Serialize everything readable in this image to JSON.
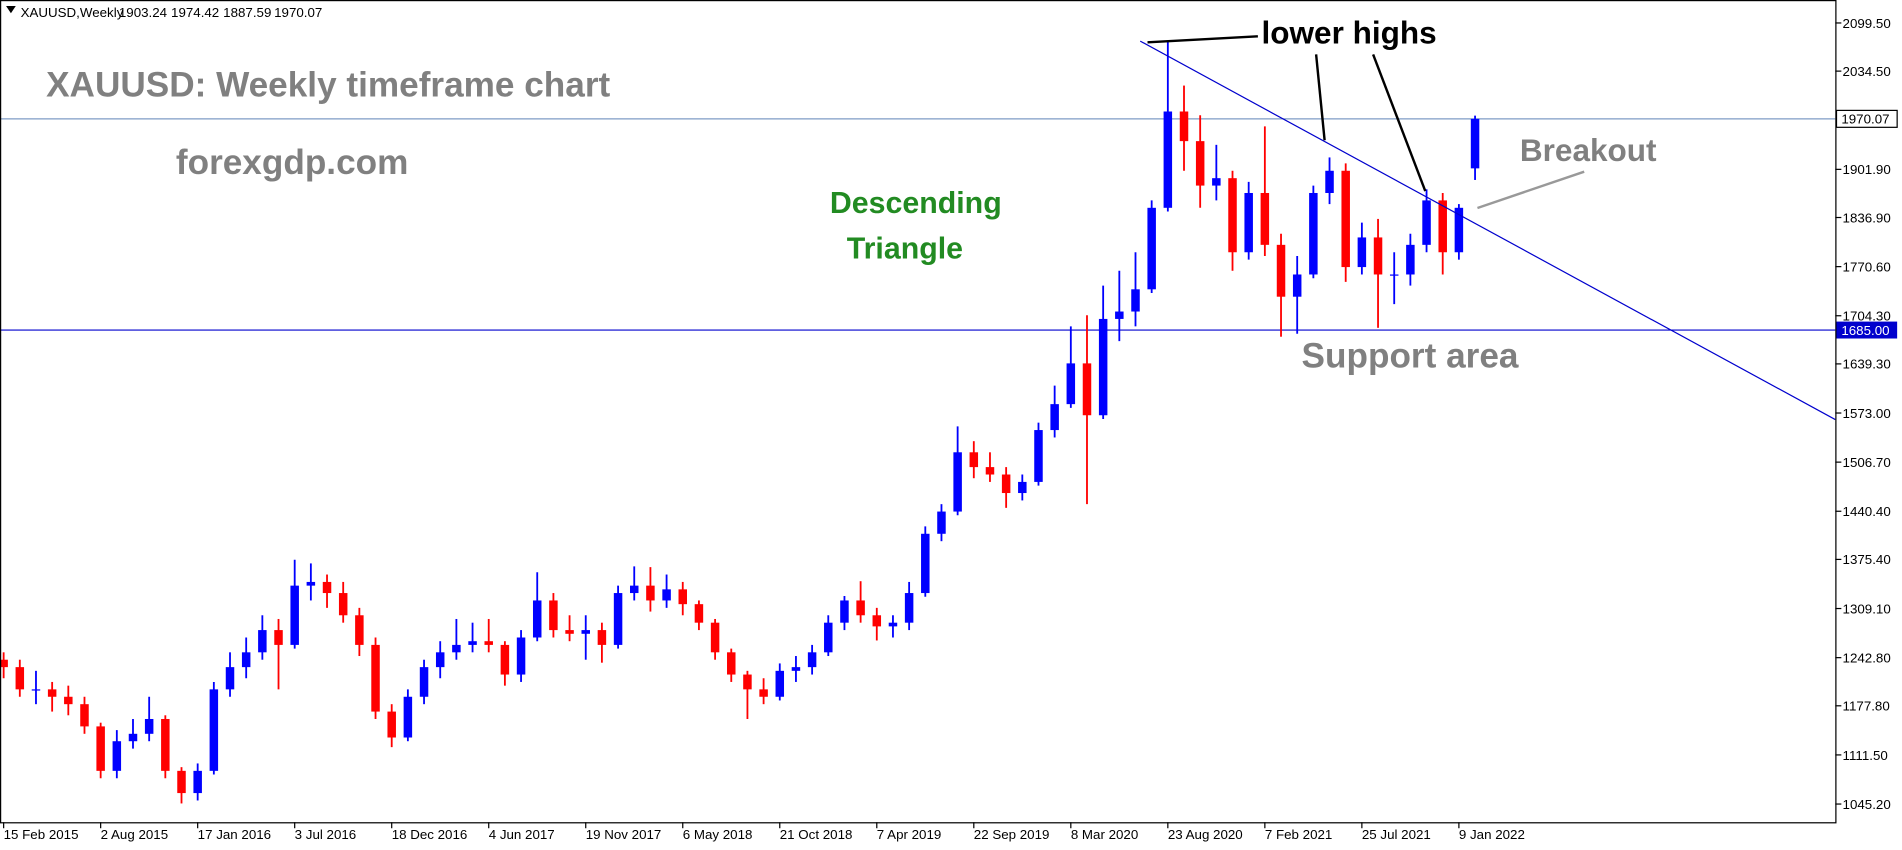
{
  "chart_data": {
    "type": "candlestick",
    "symbol": "XAUUSD,Weekly",
    "title": "XAUUSD: Weekly timeframe chart",
    "site": "forexgdp.com",
    "pattern": [
      "Descending",
      "Triangle"
    ],
    "annotation_lower_highs": "lower highs",
    "annotation_breakout": "Breakout",
    "annotation_support": "Support area",
    "up_color": "#0000ff",
    "down_color": "#ff0000",
    "categories": [
      "15 Feb 2015",
      null,
      null,
      null,
      null,
      null,
      "2 Aug 2015",
      null,
      null,
      null,
      null,
      null,
      "17 Jan 2016",
      null,
      null,
      null,
      null,
      null,
      "3 Jul 2016",
      null,
      null,
      null,
      null,
      null,
      "18 Dec 2016",
      null,
      null,
      null,
      null,
      null,
      "4 Jun 2017",
      null,
      null,
      null,
      null,
      null,
      "19 Nov 2017",
      null,
      null,
      null,
      null,
      null,
      "6 May 2018",
      null,
      null,
      null,
      null,
      null,
      "21 Oct 2018",
      null,
      null,
      null,
      null,
      null,
      "7 Apr 2019",
      null,
      null,
      null,
      null,
      null,
      "22 Sep 2019",
      null,
      null,
      null,
      null,
      null,
      "8 Mar 2020",
      null,
      null,
      null,
      null,
      null,
      "23 Aug 2020",
      null,
      null,
      null,
      null,
      null,
      "7 Feb 2021",
      null,
      null,
      null,
      null,
      null,
      "25 Jul 2021",
      null,
      null,
      null,
      null,
      null,
      "9 Jan 2022",
      null
    ],
    "ohlc": [
      [
        1240,
        1250,
        1215,
        1230
      ],
      [
        1230,
        1240,
        1190,
        1200
      ],
      [
        1200,
        1225,
        1180,
        1200
      ],
      [
        1200,
        1210,
        1170,
        1190
      ],
      [
        1190,
        1205,
        1165,
        1180
      ],
      [
        1180,
        1190,
        1140,
        1150
      ],
      [
        1150,
        1155,
        1080,
        1090
      ],
      [
        1090,
        1145,
        1080,
        1130
      ],
      [
        1130,
        1160,
        1120,
        1140
      ],
      [
        1140,
        1190,
        1130,
        1160
      ],
      [
        1160,
        1165,
        1080,
        1090
      ],
      [
        1090,
        1095,
        1046,
        1060
      ],
      [
        1060,
        1100,
        1050,
        1090
      ],
      [
        1090,
        1210,
        1085,
        1200
      ],
      [
        1200,
        1250,
        1190,
        1230
      ],
      [
        1230,
        1270,
        1215,
        1250
      ],
      [
        1250,
        1300,
        1240,
        1280
      ],
      [
        1280,
        1295,
        1200,
        1260
      ],
      [
        1260,
        1375,
        1255,
        1340
      ],
      [
        1340,
        1370,
        1320,
        1345
      ],
      [
        1345,
        1355,
        1310,
        1330
      ],
      [
        1330,
        1345,
        1290,
        1300
      ],
      [
        1300,
        1310,
        1245,
        1260
      ],
      [
        1260,
        1270,
        1160,
        1170
      ],
      [
        1170,
        1180,
        1122,
        1135
      ],
      [
        1135,
        1200,
        1130,
        1190
      ],
      [
        1190,
        1240,
        1180,
        1230
      ],
      [
        1230,
        1265,
        1215,
        1250
      ],
      [
        1250,
        1295,
        1240,
        1260
      ],
      [
        1260,
        1290,
        1250,
        1265
      ],
      [
        1265,
        1295,
        1250,
        1260
      ],
      [
        1260,
        1265,
        1205,
        1220
      ],
      [
        1220,
        1280,
        1210,
        1270
      ],
      [
        1270,
        1358,
        1265,
        1320
      ],
      [
        1320,
        1330,
        1270,
        1280
      ],
      [
        1280,
        1300,
        1265,
        1275
      ],
      [
        1275,
        1300,
        1240,
        1280
      ],
      [
        1280,
        1290,
        1236,
        1260
      ],
      [
        1260,
        1340,
        1255,
        1330
      ],
      [
        1330,
        1366,
        1320,
        1340
      ],
      [
        1340,
        1365,
        1305,
        1320
      ],
      [
        1320,
        1355,
        1310,
        1335
      ],
      [
        1335,
        1345,
        1300,
        1315
      ],
      [
        1315,
        1320,
        1280,
        1290
      ],
      [
        1290,
        1295,
        1240,
        1250
      ],
      [
        1250,
        1255,
        1210,
        1220
      ],
      [
        1220,
        1225,
        1160,
        1200
      ],
      [
        1200,
        1215,
        1180,
        1190
      ],
      [
        1190,
        1235,
        1185,
        1225
      ],
      [
        1225,
        1245,
        1210,
        1230
      ],
      [
        1230,
        1260,
        1220,
        1250
      ],
      [
        1250,
        1300,
        1245,
        1290
      ],
      [
        1290,
        1326,
        1280,
        1320
      ],
      [
        1320,
        1346,
        1290,
        1300
      ],
      [
        1300,
        1310,
        1266,
        1285
      ],
      [
        1285,
        1300,
        1270,
        1290
      ],
      [
        1290,
        1345,
        1280,
        1330
      ],
      [
        1330,
        1420,
        1325,
        1410
      ],
      [
        1410,
        1450,
        1400,
        1440
      ],
      [
        1440,
        1555,
        1435,
        1520
      ],
      [
        1520,
        1535,
        1485,
        1500
      ],
      [
        1500,
        1520,
        1480,
        1490
      ],
      [
        1490,
        1500,
        1445,
        1465
      ],
      [
        1465,
        1490,
        1455,
        1480
      ],
      [
        1480,
        1560,
        1475,
        1550
      ],
      [
        1550,
        1610,
        1540,
        1585
      ],
      [
        1585,
        1690,
        1580,
        1640
      ],
      [
        1640,
        1705,
        1450,
        1570
      ],
      [
        1570,
        1745,
        1565,
        1700
      ],
      [
        1700,
        1765,
        1670,
        1710
      ],
      [
        1710,
        1790,
        1690,
        1740
      ],
      [
        1740,
        1860,
        1735,
        1850
      ],
      [
        1850,
        2075,
        1845,
        1980
      ],
      [
        1980,
        2015,
        1900,
        1940
      ],
      [
        1940,
        1975,
        1850,
        1880
      ],
      [
        1880,
        1935,
        1860,
        1890
      ],
      [
        1890,
        1900,
        1765,
        1790
      ],
      [
        1790,
        1885,
        1780,
        1870
      ],
      [
        1870,
        1960,
        1785,
        1800
      ],
      [
        1800,
        1815,
        1676,
        1730
      ],
      [
        1730,
        1785,
        1680,
        1760
      ],
      [
        1760,
        1880,
        1755,
        1870
      ],
      [
        1870,
        1918,
        1855,
        1900
      ],
      [
        1900,
        1910,
        1750,
        1770
      ],
      [
        1770,
        1830,
        1760,
        1810
      ],
      [
        1810,
        1835,
        1688,
        1760
      ],
      [
        1760,
        1790,
        1720,
        1760
      ],
      [
        1760,
        1815,
        1745,
        1800
      ],
      [
        1800,
        1875,
        1790,
        1860
      ],
      [
        1860,
        1870,
        1760,
        1790
      ],
      [
        1790,
        1855,
        1780,
        1850
      ],
      [
        1903.24,
        1974.42,
        1887.59,
        1970.07
      ]
    ],
    "ylim": [
      1020.7,
      2130.5
    ],
    "yticks": [
      {
        "value": 2099.5,
        "label": "2099.50"
      },
      {
        "value": 2034.5,
        "label": "2034.50"
      },
      {
        "value": 1901.9,
        "label": "1901.90"
      },
      {
        "value": 1836.9,
        "label": "1836.90"
      },
      {
        "value": 1770.6,
        "label": "1770.60"
      },
      {
        "value": 1704.3,
        "label": "1704.30"
      },
      {
        "value": 1639.3,
        "label": "1639.30"
      },
      {
        "value": 1573.0,
        "label": "1573.00"
      },
      {
        "value": 1506.7,
        "label": "1506.70"
      },
      {
        "value": 1440.4,
        "label": "1440.40"
      },
      {
        "value": 1375.4,
        "label": "1375.40"
      },
      {
        "value": 1309.1,
        "label": "1309.10"
      },
      {
        "value": 1242.8,
        "label": "1242.80"
      },
      {
        "value": 1177.8,
        "label": "1177.80"
      },
      {
        "value": 1111.5,
        "label": "1111.50"
      },
      {
        "value": 1045.2,
        "label": "1045.20"
      }
    ],
    "support_line": {
      "value": 1685,
      "label": "1685.00",
      "color": "#0000cd"
    },
    "price_line_color": "#7f9cc6"
  }
}
